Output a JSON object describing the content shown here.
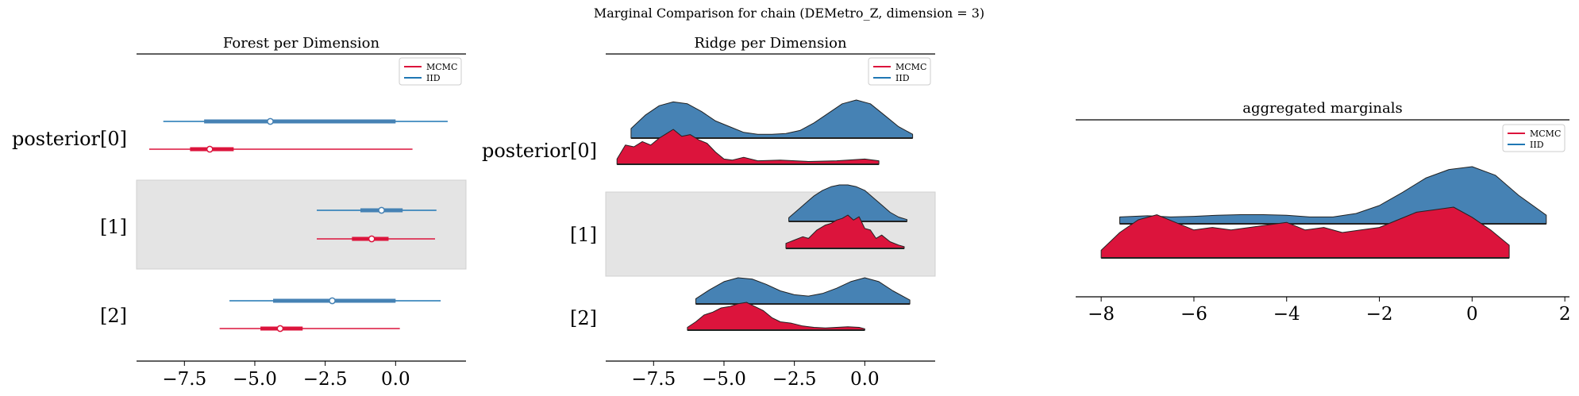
{
  "suptitle": "Marginal Comparison for chain (DEMetro_Z, dimension = 3)",
  "colors": {
    "mcmc": "#dc143c",
    "mcmc_dark": "#b3122f",
    "iid": "#4682b4",
    "iid_line": "#1f77b4",
    "band": "#e4e4e4"
  },
  "chart_data": [
    {
      "type": "forest",
      "title": "Forest per Dimension",
      "legend": {
        "placement": "top-right",
        "entries": [
          "MCMC",
          "IID"
        ]
      },
      "xlim": [
        -9.2,
        2.5
      ],
      "xticks": [
        -7.5,
        -5.0,
        -2.5,
        0.0
      ],
      "xtick_labels": [
        "−7.5",
        "−5.0",
        "−2.5",
        "0.0"
      ],
      "rows": [
        {
          "label": "posterior[0]",
          "iid": {
            "min": -8.25,
            "q25": -6.8,
            "median": -4.45,
            "q75": 0.0,
            "max": 1.85
          },
          "mcmc": {
            "min": -8.75,
            "q25": -7.3,
            "median": -6.6,
            "q75": -5.75,
            "max": 0.6
          }
        },
        {
          "label": "[1]",
          "iid": {
            "min": -2.8,
            "q25": -1.25,
            "median": -0.5,
            "q75": 0.25,
            "max": 1.45
          },
          "mcmc": {
            "min": -2.8,
            "q25": -1.55,
            "median": -0.85,
            "q75": -0.25,
            "max": 1.4
          }
        },
        {
          "label": "[2]",
          "iid": {
            "min": -5.9,
            "q25": -4.35,
            "median": -2.25,
            "q75": 0.0,
            "max": 1.6
          },
          "mcmc": {
            "min": -6.25,
            "q25": -4.8,
            "median": -4.1,
            "q75": -3.3,
            "max": 0.15
          }
        }
      ]
    },
    {
      "type": "ridge",
      "title": "Ridge per Dimension",
      "legend": {
        "placement": "top-right",
        "entries": [
          "MCMC",
          "IID"
        ]
      },
      "xlim": [
        -9.2,
        2.5
      ],
      "xticks": [
        -7.5,
        -5.0,
        -2.5,
        0.0
      ],
      "xtick_labels": [
        "−7.5",
        "−5.0",
        "−2.5",
        "0.0"
      ],
      "rows": [
        {
          "label": "posterior[0]",
          "iid": {
            "x": [
              -8.3,
              -7.8,
              -7.3,
              -6.8,
              -6.3,
              -5.8,
              -5.3,
              -4.8,
              -4.3,
              -3.8,
              -3.3,
              -2.8,
              -2.3,
              -1.8,
              -1.3,
              -0.8,
              -0.3,
              0.2,
              0.7,
              1.2,
              1.7
            ],
            "y": [
              0.25,
              0.6,
              0.85,
              0.95,
              0.9,
              0.7,
              0.45,
              0.3,
              0.15,
              0.1,
              0.1,
              0.12,
              0.2,
              0.4,
              0.65,
              0.9,
              1.0,
              0.9,
              0.6,
              0.3,
              0.1
            ]
          },
          "mcmc": {
            "x": [
              -8.8,
              -8.5,
              -8.2,
              -7.9,
              -7.6,
              -7.3,
              -7.0,
              -6.8,
              -6.5,
              -6.2,
              -5.9,
              -5.6,
              -5.3,
              -5.0,
              -4.7,
              -4.3,
              -3.8,
              -3.0,
              -2.0,
              -1.0,
              0.0,
              0.5
            ],
            "y": [
              0.15,
              0.55,
              0.5,
              0.65,
              0.55,
              0.75,
              0.9,
              1.0,
              0.8,
              0.85,
              0.7,
              0.6,
              0.35,
              0.15,
              0.12,
              0.2,
              0.1,
              0.12,
              0.08,
              0.1,
              0.15,
              0.1
            ]
          }
        },
        {
          "label": "[1]",
          "iid": {
            "x": [
              -2.7,
              -2.4,
              -2.1,
              -1.8,
              -1.5,
              -1.2,
              -0.9,
              -0.6,
              -0.3,
              0.0,
              0.3,
              0.6,
              0.9,
              1.2,
              1.5
            ],
            "y": [
              0.1,
              0.3,
              0.5,
              0.7,
              0.85,
              0.95,
              1.0,
              1.0,
              0.95,
              0.85,
              0.65,
              0.45,
              0.25,
              0.12,
              0.05
            ]
          },
          "mcmc": {
            "x": [
              -2.8,
              -2.5,
              -2.2,
              -2.0,
              -1.7,
              -1.4,
              -1.2,
              -1.0,
              -0.8,
              -0.6,
              -0.4,
              -0.2,
              0.0,
              0.2,
              0.4,
              0.6,
              0.9,
              1.2,
              1.4
            ],
            "y": [
              0.15,
              0.25,
              0.35,
              0.3,
              0.55,
              0.7,
              0.75,
              0.85,
              0.9,
              1.0,
              0.85,
              0.95,
              0.6,
              0.55,
              0.3,
              0.4,
              0.2,
              0.1,
              0.05
            ]
          }
        },
        {
          "label": "[2]",
          "iid": {
            "x": [
              -6.0,
              -5.5,
              -5.0,
              -4.5,
              -4.0,
              -3.5,
              -3.0,
              -2.5,
              -2.0,
              -1.5,
              -1.0,
              -0.5,
              0.0,
              0.5,
              1.0,
              1.6
            ],
            "y": [
              0.2,
              0.55,
              0.85,
              1.0,
              0.95,
              0.75,
              0.5,
              0.35,
              0.3,
              0.4,
              0.6,
              0.85,
              1.0,
              0.85,
              0.5,
              0.15
            ]
          },
          "mcmc": {
            "x": [
              -6.3,
              -6.0,
              -5.7,
              -5.4,
              -5.1,
              -4.8,
              -4.5,
              -4.2,
              -3.9,
              -3.6,
              -3.3,
              -3.0,
              -2.6,
              -2.2,
              -1.8,
              -1.4,
              -1.0,
              -0.6,
              -0.2,
              0.0
            ],
            "y": [
              0.1,
              0.3,
              0.55,
              0.65,
              0.8,
              0.85,
              0.95,
              1.0,
              0.85,
              0.7,
              0.45,
              0.3,
              0.25,
              0.15,
              0.1,
              0.08,
              0.1,
              0.12,
              0.1,
              0.05
            ]
          }
        }
      ]
    },
    {
      "type": "ridge",
      "title": "aggregated marginals",
      "legend": {
        "placement": "top-right",
        "entries": [
          "MCMC",
          "IID"
        ]
      },
      "xlim": [
        -8.55,
        2.1
      ],
      "xticks": [
        -8,
        -6,
        -4,
        -2,
        0,
        2
      ],
      "xtick_labels": [
        "−8",
        "−6",
        "−4",
        "−2",
        "0",
        "2"
      ],
      "rows": [
        {
          "label": "",
          "iid": {
            "x": [
              -7.6,
              -7.0,
              -6.5,
              -6.0,
              -5.5,
              -5.0,
              -4.5,
              -4.0,
              -3.5,
              -3.0,
              -2.5,
              -2.0,
              -1.5,
              -1.0,
              -0.5,
              0.0,
              0.5,
              1.0,
              1.6
            ],
            "y": [
              0.12,
              0.14,
              0.12,
              0.13,
              0.15,
              0.16,
              0.16,
              0.15,
              0.12,
              0.12,
              0.18,
              0.32,
              0.55,
              0.8,
              0.95,
              1.0,
              0.85,
              0.5,
              0.15
            ]
          },
          "mcmc": {
            "x": [
              -8.0,
              -7.6,
              -7.2,
              -6.8,
              -6.4,
              -6.0,
              -5.6,
              -5.2,
              -4.8,
              -4.4,
              -4.0,
              -3.6,
              -3.2,
              -2.8,
              -2.4,
              -2.0,
              -1.6,
              -1.2,
              -0.8,
              -0.4,
              0.0,
              0.4,
              0.8
            ],
            "y": [
              0.15,
              0.5,
              0.75,
              0.85,
              0.7,
              0.55,
              0.6,
              0.55,
              0.6,
              0.65,
              0.7,
              0.55,
              0.6,
              0.5,
              0.55,
              0.6,
              0.75,
              0.9,
              0.95,
              1.0,
              0.8,
              0.55,
              0.25
            ]
          }
        }
      ]
    }
  ]
}
